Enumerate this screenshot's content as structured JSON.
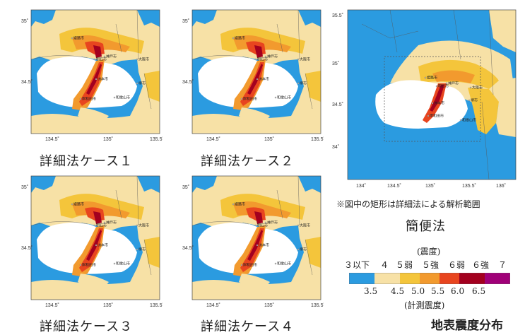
{
  "panels": [
    {
      "caption": "詳細法ケース１",
      "xticks": [
        "134.5˚",
        "135˚",
        "135.5˚"
      ],
      "yticks": [
        "35˚",
        "34.5˚"
      ]
    },
    {
      "caption": "詳細法ケース２",
      "xticks": [
        "134.5˚",
        "135˚",
        "135.5˚"
      ],
      "yticks": [
        "35˚",
        "34.5˚"
      ]
    },
    {
      "caption": "詳細法ケース３",
      "xticks": [
        "134.5˚",
        "135˚",
        "135.5˚"
      ],
      "yticks": [
        "35˚",
        "34.5˚"
      ]
    },
    {
      "caption": "詳細法ケース４",
      "xticks": [
        "134.5˚",
        "135˚",
        "135.5˚"
      ],
      "yticks": [
        "35˚",
        "34.5˚"
      ]
    }
  ],
  "simple": {
    "caption": "簡便法",
    "note": "※図中の矩形は詳細法による解析範囲",
    "xticks": [
      "134˚",
      "134.5˚",
      "135˚",
      "135.5˚",
      "136˚"
    ],
    "yticks": [
      "35.5˚",
      "35˚",
      "34.5˚",
      "34˚"
    ]
  },
  "cities": [
    "姫路市",
    "明石市",
    "神戸市",
    "大阪市",
    "洲本市",
    "堺市",
    "和歌山市",
    "岸和田市"
  ],
  "legend": {
    "header_top": "(震度)",
    "intensity_labels": [
      "３以下",
      "４",
      "５弱",
      "５強",
      "６弱",
      "６強",
      "７"
    ],
    "instrument_values": [
      "3.5",
      "4.5",
      "5.0",
      "5.5",
      "6.0",
      "6.5"
    ],
    "header_bottom": "(計測震度)",
    "colors": [
      "#2b9be0",
      "#f7e1a6",
      "#f4c53b",
      "#f29a2e",
      "#e8451f",
      "#a3001f",
      "#a00078"
    ]
  },
  "title": "地表震度分布"
}
